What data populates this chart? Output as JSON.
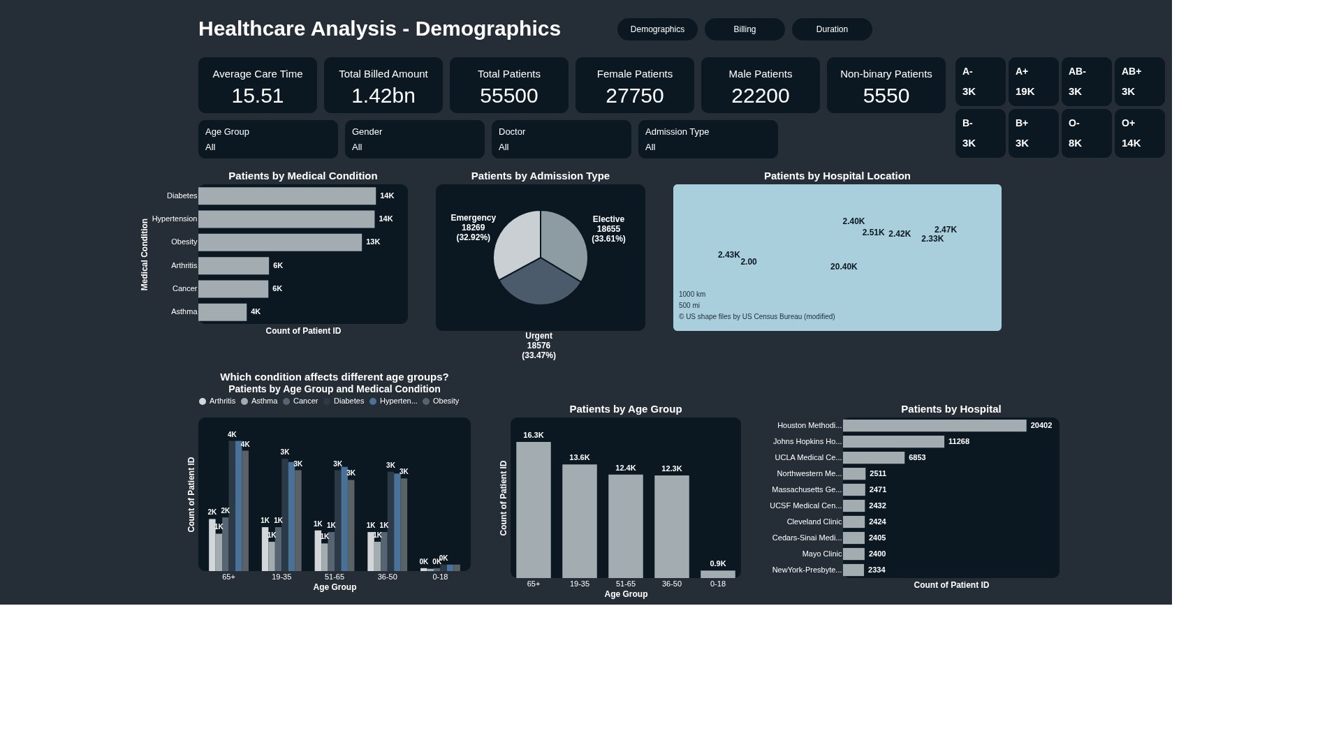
{
  "chart_data": [
    {
      "type": "other",
      "title": "Healthcare Analysis -  Demographics",
      "annotations": [
        "Demographics",
        "Billing",
        "Duration"
      ]
    },
    {
      "type": "other",
      "annotations": [
        "Average Care Time",
        "15.51",
        "Total Billed Amount",
        "1.42bn",
        "Total Patients",
        "55500",
        "Female Patients",
        "27750",
        "Male Patients",
        "22200",
        "Non-binary Patients",
        "5550"
      ]
    },
    {
      "type": "other",
      "annotations": [
        "Age Group",
        "All",
        "Gender",
        "All",
        "Doctor",
        "All",
        "Admission Type",
        "All"
      ]
    },
    {
      "type": "other",
      "annotations": [
        "A-",
        "3K",
        "A+",
        "19K",
        "AB-",
        "3K",
        "AB+",
        "3K",
        "B-",
        "3K",
        "B+",
        "3K",
        "O-",
        "8K",
        "O+",
        "14K"
      ]
    },
    {
      "type": "bar",
      "orientation": "horizontal",
      "title": "Patients by Medical Condition",
      "xlabel": "Count of Patient ID",
      "ylabel": "Medical Condition",
      "tick_labels": "y",
      "color": "#a3adb1",
      "categories": [
        "Diabetes",
        "Hypertension",
        "Obesity",
        "Arthritis",
        "Cancer",
        "Asthma"
      ],
      "values": [
        13950,
        13850,
        12850,
        5550,
        5500,
        3800
      ],
      "value_labels": [
        "14K",
        "14K",
        "13K",
        "6K",
        "6K",
        "4K"
      ]
    },
    {
      "type": "pie",
      "title": "Patients by Admission Type",
      "categories": [
        "Elective",
        "Urgent",
        "Emergency"
      ],
      "values": [
        18655,
        18576,
        18269
      ],
      "colors": [
        "#8d9ba3",
        "#4b5b6b",
        "#c9cfd2"
      ],
      "value_labels": [
        "18655 (33.61%)",
        "18576 (33.47%)",
        "18269 (32.92%)"
      ]
    },
    {
      "type": "other",
      "title": "Patients by Hospital Location",
      "annotations": [
        "2.40K",
        "2.51K",
        "2.42K",
        "2.47K",
        "2.33K",
        "2.43K",
        "2.00",
        "20.40K",
        "1000 km",
        "500 mi",
        "© US shape files by US Census Bureau (modified)"
      ]
    },
    {
      "type": "bar",
      "title": "Which condition affects different age groups?",
      "subtitle": "Patients by Age Group and Medical Condition",
      "xlabel": "Age Group",
      "ylabel": "Count of Patient ID",
      "tick_labels": "x",
      "legend": "top left",
      "categories": [
        "65+",
        "19-35",
        "51-65",
        "36-50",
        "0-18"
      ],
      "series": [
        {
          "name": "Arthritis",
          "color": "#d3d7d9",
          "values": [
            1600,
            1350,
            1250,
            1200,
            90
          ],
          "value_labels": [
            "2K",
            "1K",
            "1K",
            "1K",
            "0K"
          ]
        },
        {
          "name": "Asthma",
          "color": "#a3adb0",
          "values": [
            1150,
            900,
            850,
            900,
            70
          ],
          "value_labels": [
            "1K",
            "1K",
            "1K",
            "1K",
            null
          ]
        },
        {
          "name": "Cancer",
          "color": "#566571",
          "values": [
            1650,
            1350,
            1200,
            1200,
            90
          ],
          "value_labels": [
            "2K",
            "1K",
            "1K",
            "1K",
            "0K"
          ]
        },
        {
          "name": "Diabetes",
          "color": "#2c3a48",
          "values": [
            4000,
            3450,
            3100,
            3050,
            200
          ],
          "value_labels": [
            "4K",
            "3K",
            "3K",
            "3K",
            "0K"
          ]
        },
        {
          "name": "Hyperten...",
          "color": "#4a7298",
          "values": [
            4000,
            3350,
            3200,
            3000,
            200
          ]
        },
        {
          "name": "Obesity",
          "color": "#5b6266",
          "values": [
            3700,
            3100,
            2800,
            2850,
            200
          ],
          "value_labels": [
            "4K",
            "3K",
            "3K",
            "3K",
            null
          ]
        }
      ]
    },
    {
      "type": "bar",
      "title": "Patients by Age Group",
      "xlabel": "Age Group",
      "ylabel": "Count of Patient ID",
      "tick_labels": "x",
      "color": "#a3adb1",
      "categories": [
        "65+",
        "19-35",
        "51-65",
        "36-50",
        "0-18"
      ],
      "values": [
        16300,
        13600,
        12400,
        12300,
        900
      ],
      "value_labels": [
        "16.3K",
        "13.6K",
        "12.4K",
        "12.3K",
        "0.9K"
      ]
    },
    {
      "type": "bar",
      "orientation": "horizontal",
      "title": "Patients by Hospital",
      "xlabel": "Count of Patient ID",
      "tick_labels": "y",
      "color": "#a3adb1",
      "data_labels": true,
      "categories": [
        "Houston Methodi...",
        "Johns Hopkins Ho...",
        "UCLA Medical Ce...",
        "Northwestern Me...",
        "Massachusetts Ge...",
        "UCSF Medical Cen...",
        "Cleveland Clinic",
        "Cedars-Sinai Medi...",
        "Mayo Clinic",
        "NewYork-Presbyte..."
      ],
      "values": [
        20402,
        11268,
        6853,
        2511,
        2471,
        2432,
        2424,
        2405,
        2400,
        2334
      ]
    }
  ]
}
